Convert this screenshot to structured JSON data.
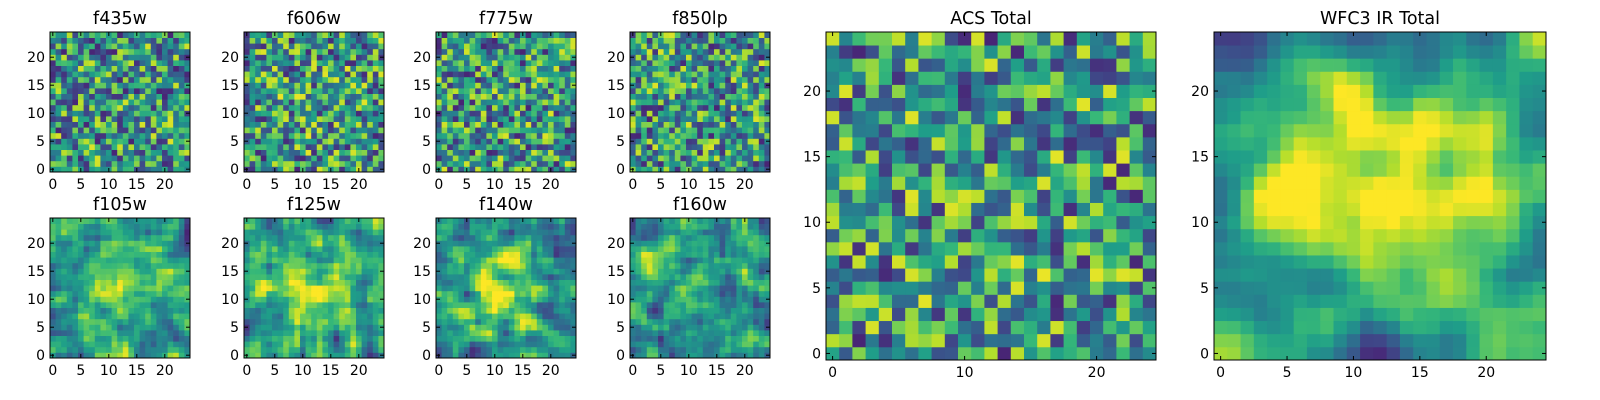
{
  "chart_data": [
    {
      "type": "heatmap",
      "title": "f435w",
      "grid_size": 25,
      "xticks": [
        0,
        5,
        10,
        15,
        20
      ],
      "yticks": [
        0,
        5,
        10,
        15,
        20
      ],
      "colormap": "viridis",
      "seed": 11,
      "smooth": 0,
      "center": 0
    },
    {
      "type": "heatmap",
      "title": "f606w",
      "grid_size": 25,
      "xticks": [
        0,
        5,
        10,
        15,
        20
      ],
      "yticks": [
        0,
        5,
        10,
        15,
        20
      ],
      "colormap": "viridis",
      "seed": 23,
      "smooth": 0,
      "center": 0.05
    },
    {
      "type": "heatmap",
      "title": "f775w",
      "grid_size": 25,
      "xticks": [
        0,
        5,
        10,
        15,
        20
      ],
      "yticks": [
        0,
        5,
        10,
        15,
        20
      ],
      "colormap": "viridis",
      "seed": 37,
      "smooth": 0,
      "center": 0
    },
    {
      "type": "heatmap",
      "title": "f850lp",
      "grid_size": 25,
      "xticks": [
        0,
        5,
        10,
        15,
        20
      ],
      "yticks": [
        0,
        5,
        10,
        15,
        20
      ],
      "colormap": "viridis",
      "seed": 41,
      "smooth": 0,
      "center": 0
    },
    {
      "type": "heatmap",
      "title": "f105w",
      "grid_size": 25,
      "xticks": [
        0,
        5,
        10,
        15,
        20
      ],
      "yticks": [
        0,
        5,
        10,
        15,
        20
      ],
      "colormap": "viridis",
      "seed": 53,
      "smooth": 1,
      "center": 0.25
    },
    {
      "type": "heatmap",
      "title": "f125w",
      "grid_size": 25,
      "xticks": [
        0,
        5,
        10,
        15,
        20
      ],
      "yticks": [
        0,
        5,
        10,
        15,
        20
      ],
      "colormap": "viridis",
      "seed": 67,
      "smooth": 1,
      "center": 0.25
    },
    {
      "type": "heatmap",
      "title": "f140w",
      "grid_size": 25,
      "xticks": [
        0,
        5,
        10,
        15,
        20
      ],
      "yticks": [
        0,
        5,
        10,
        15,
        20
      ],
      "colormap": "viridis",
      "seed": 71,
      "smooth": 1,
      "center": 0.25
    },
    {
      "type": "heatmap",
      "title": "f160w",
      "grid_size": 25,
      "xticks": [
        0,
        5,
        10,
        15,
        20
      ],
      "yticks": [
        0,
        5,
        10,
        15,
        20
      ],
      "colormap": "viridis",
      "seed": 83,
      "smooth": 1,
      "center": 0.2
    },
    {
      "type": "heatmap",
      "title": "ACS Total",
      "grid_size": 25,
      "xticks": [
        0,
        10,
        20
      ],
      "yticks": [
        0,
        5,
        10,
        15,
        20
      ],
      "colormap": "viridis",
      "seed": 97,
      "smooth": 0,
      "center": 0.05
    },
    {
      "type": "heatmap",
      "title": "WFC3 IR Total",
      "grid_size": 25,
      "xticks": [
        0,
        5,
        10,
        15,
        20
      ],
      "yticks": [
        0,
        5,
        10,
        15,
        20
      ],
      "colormap": "viridis",
      "seed": 109,
      "smooth": 2,
      "center": 0.55
    }
  ]
}
